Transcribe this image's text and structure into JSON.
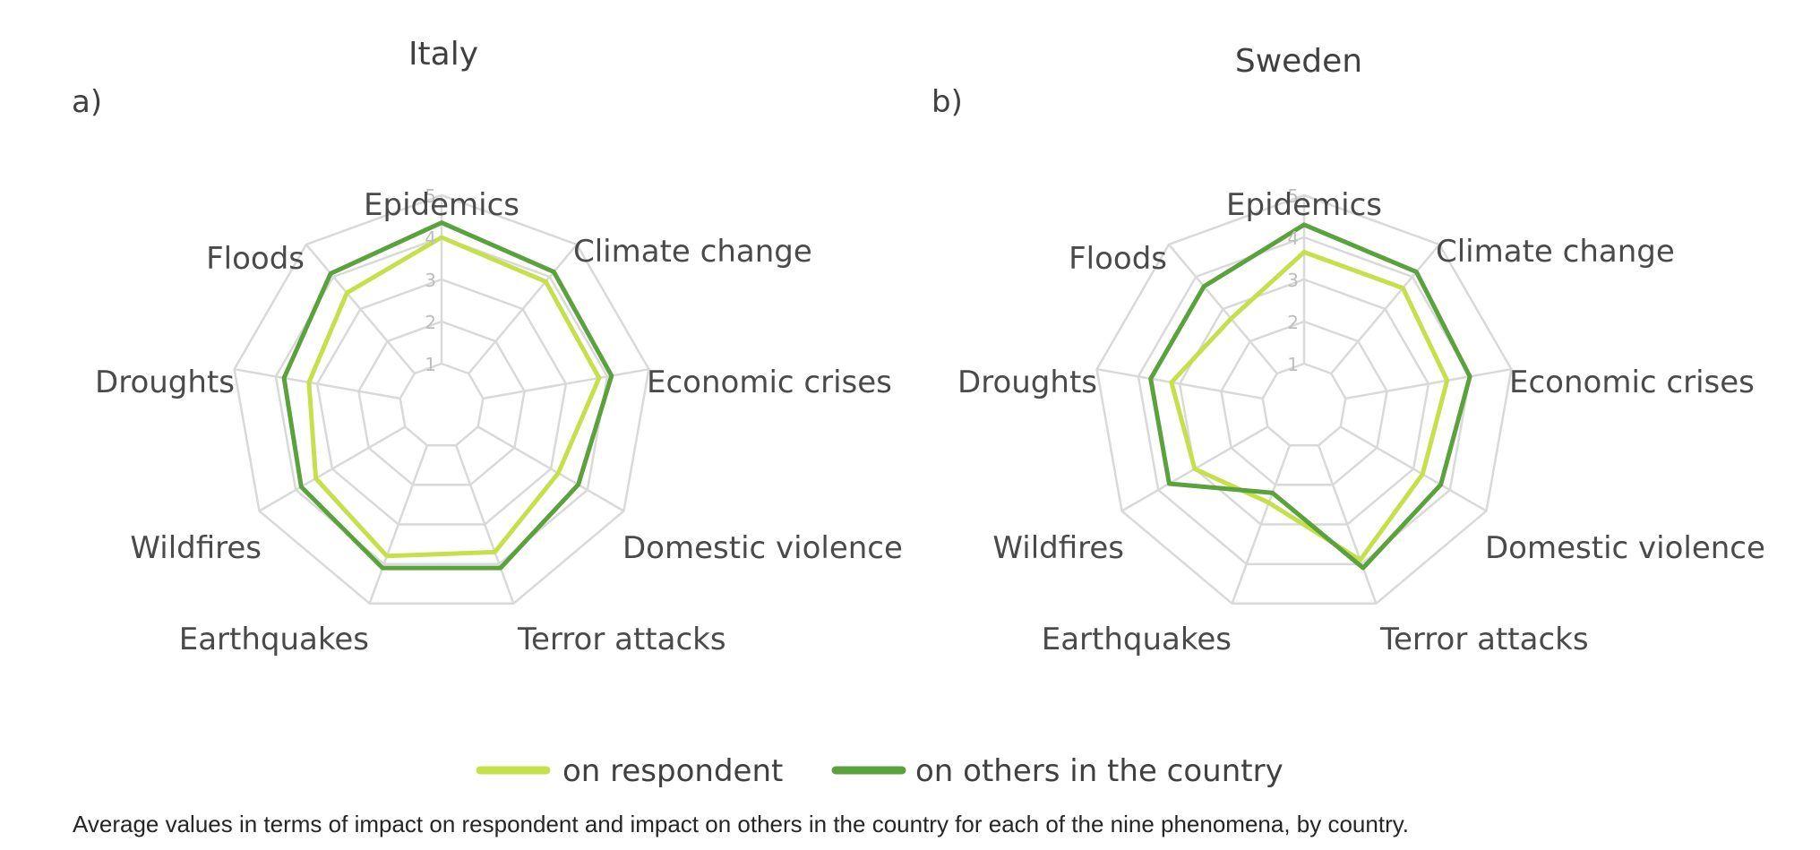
{
  "chart_data": [
    {
      "type": "radar",
      "panel": "a)",
      "title": "Italy",
      "axes": [
        "Epidemics",
        "Climate change",
        "Economic crises",
        "Domestic violence",
        "Terror attacks",
        "Earthquakes",
        "Wildfires",
        "Droughts",
        "Floods"
      ],
      "rlim": [
        0,
        5
      ],
      "ticks": [
        "1",
        "2",
        "3",
        "4",
        "5"
      ],
      "grid": true,
      "series": [
        {
          "name": "on respondent",
          "color": "#c5e04a",
          "values": [
            4.0,
            3.85,
            3.8,
            3.2,
            3.7,
            3.8,
            3.45,
            3.2,
            3.5
          ]
        },
        {
          "name": "on others in the country",
          "color": "#5aa23c",
          "values": [
            4.35,
            4.15,
            4.1,
            3.75,
            4.1,
            4.1,
            3.85,
            3.8,
            4.1
          ]
        }
      ]
    },
    {
      "type": "radar",
      "panel": "b)",
      "title": "Sweden",
      "axes": [
        "Epidemics",
        "Climate change",
        "Economic crises",
        "Domestic violence",
        "Terror attacks",
        "Earthquakes",
        "Wildfires",
        "Droughts",
        "Floods"
      ],
      "rlim": [
        0,
        5
      ],
      "ticks": [
        "1",
        "2",
        "3",
        "4",
        "5"
      ],
      "grid": true,
      "series": [
        {
          "name": "on respondent",
          "color": "#c5e04a",
          "values": [
            3.65,
            3.65,
            3.45,
            3.25,
            3.9,
            2.45,
            3.0,
            3.2,
            2.7
          ]
        },
        {
          "name": "on others in the country",
          "color": "#5aa23c",
          "values": [
            4.3,
            4.15,
            4.0,
            3.75,
            4.1,
            2.2,
            3.7,
            3.7,
            3.7
          ]
        }
      ]
    }
  ],
  "legend": {
    "position": "bottom",
    "items": [
      {
        "label": "on respondent",
        "color": "#c5e04a"
      },
      {
        "label": "on others in the country",
        "color": "#5aa23c"
      }
    ]
  },
  "caption": "Average values in terms of impact on respondent and impact on others in the country for each of the nine phenomena, by country."
}
